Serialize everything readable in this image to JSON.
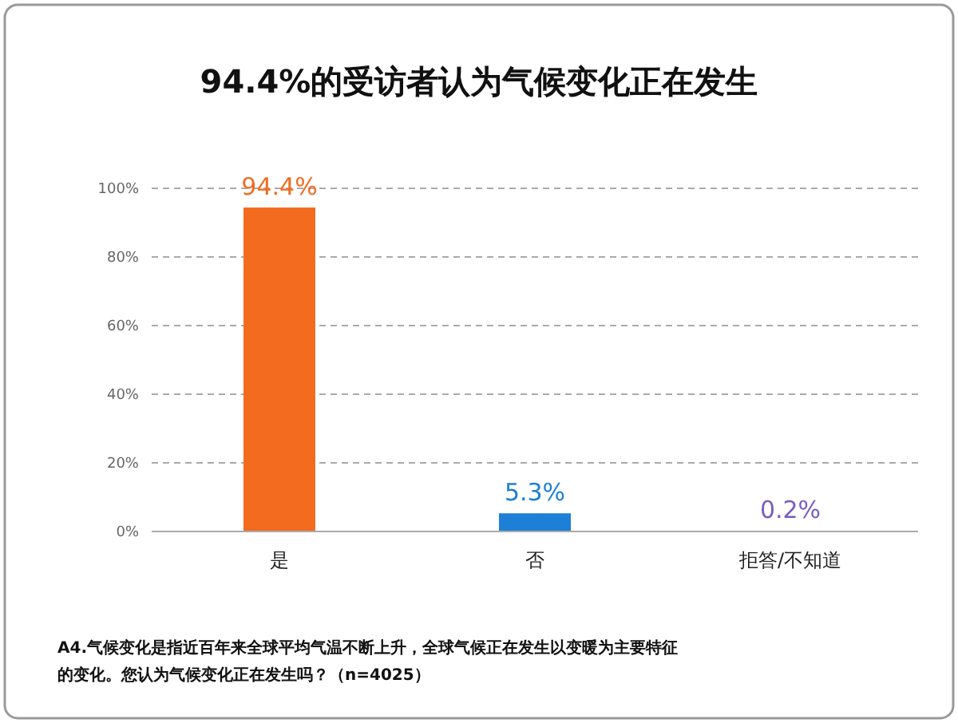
{
  "chart_data": {
    "type": "bar",
    "title": "94.4%的受访者认为气候变化正在发生",
    "categories": [
      "是",
      "否",
      "拒答/不知道"
    ],
    "values": [
      94.4,
      5.3,
      0.2
    ],
    "colors": [
      "#f26b1f",
      "#1e7fd6",
      "#7a5cc0"
    ],
    "value_labels": [
      "94.4%",
      "5.3%",
      "0.2%"
    ],
    "ylim": [
      0,
      100
    ],
    "yticks": [
      {
        "value": 0,
        "label": "0%"
      },
      {
        "value": 20,
        "label": "20%"
      },
      {
        "value": 40,
        "label": "40%"
      },
      {
        "value": 60,
        "label": "60%"
      },
      {
        "value": 80,
        "label": "80%"
      },
      {
        "value": 100,
        "label": "100%"
      }
    ],
    "grid": "y",
    "annotations": [
      "A4.气候变化是指近百年来全球平均气温不断上升，全球气候正在发生以变暖为主要特征的变化。您认为气候变化正在发生吗？（n=4025）"
    ]
  }
}
